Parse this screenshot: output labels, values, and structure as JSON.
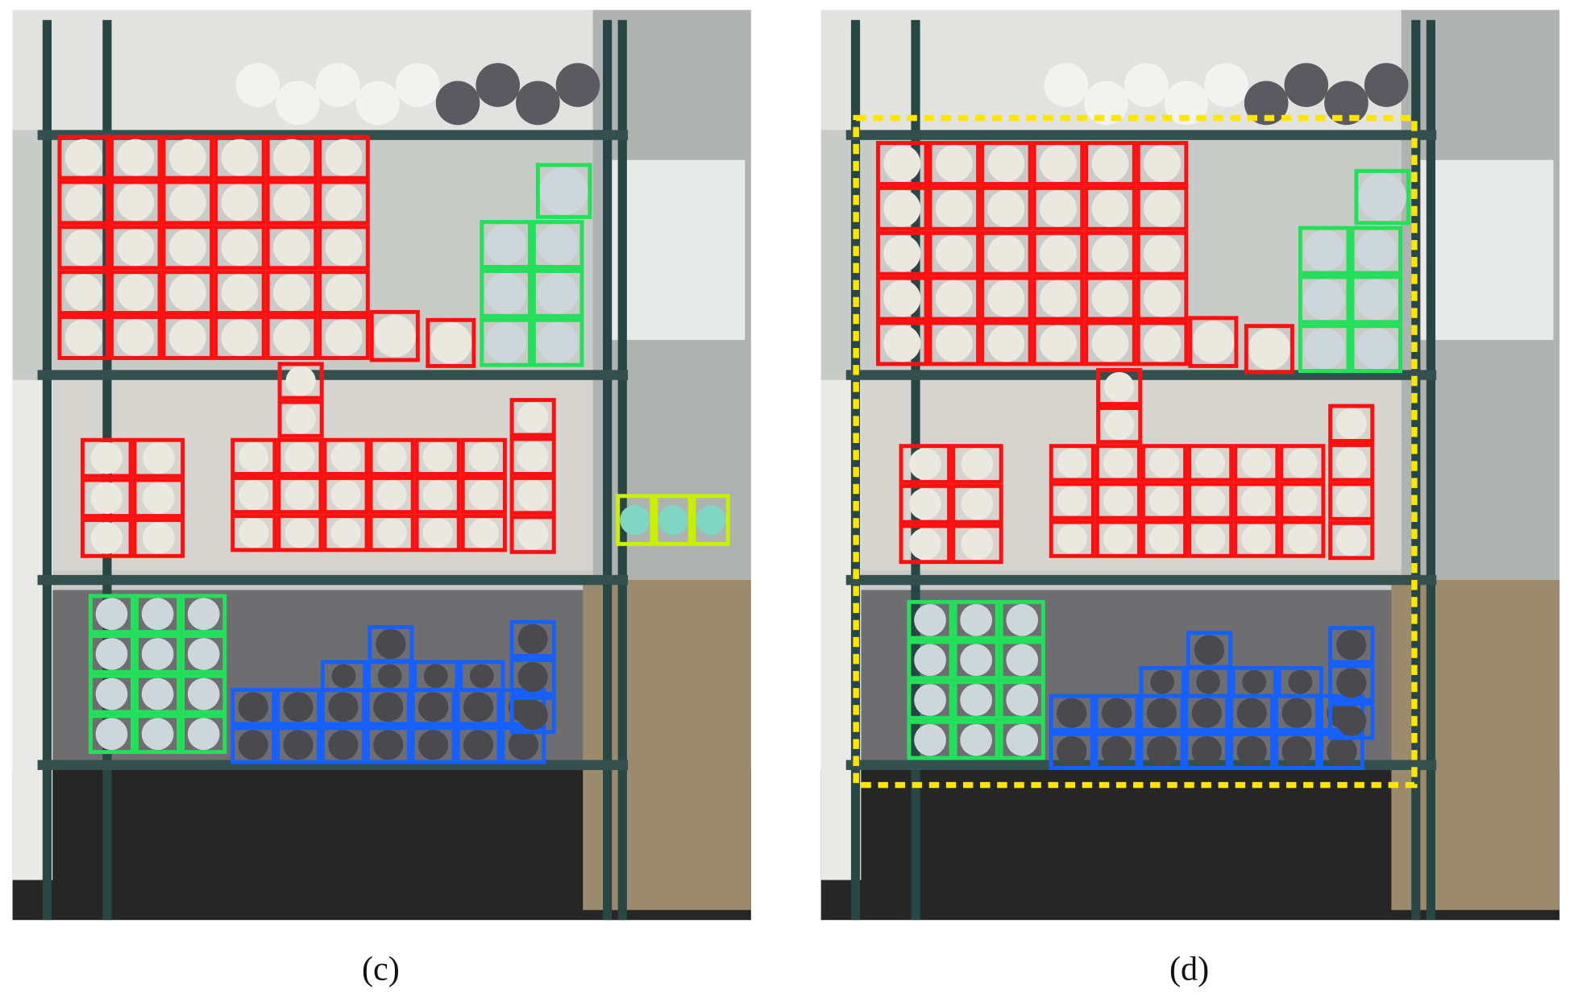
{
  "panels": [
    {
      "label": "(c)"
    },
    {
      "label": "(d)"
    }
  ]
}
